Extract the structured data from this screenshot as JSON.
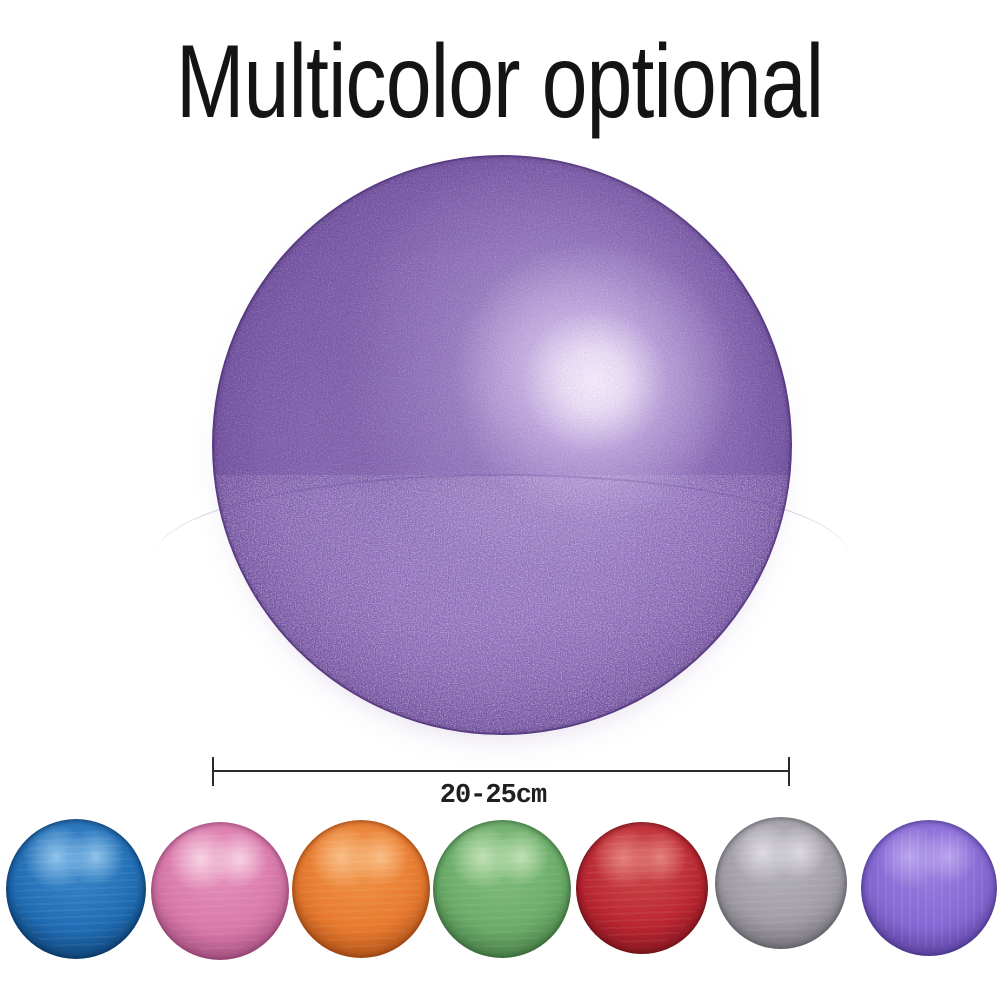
{
  "title": "Multicolor optional",
  "measurement": {
    "label": "20-25cm"
  },
  "main_ball": {
    "name": "purple",
    "colors": {
      "base": "#8f6fbc",
      "light": "#9c80c6",
      "dark": "#6e4c9b",
      "highlight": "#f6eefc",
      "outline": "#2b164a"
    }
  },
  "swatches": [
    {
      "name": "blue",
      "base": "#1f6cb4",
      "mid": "#3c87c9",
      "hi": "#8ec2ea",
      "edge": "#0d4076",
      "ring": "#082c5499"
    },
    {
      "name": "pink",
      "base": "#d977a9",
      "mid": "#e592bb",
      "hi": "#f7d2e2",
      "edge": "#b0508a",
      "ring": "#7e356699"
    },
    {
      "name": "orange",
      "base": "#e8792d",
      "mid": "#ef9448",
      "hi": "#f9bd85",
      "edge": "#bf5316",
      "ring": "#7e360d99"
    },
    {
      "name": "green",
      "base": "#6aac68",
      "mid": "#83bd7e",
      "hi": "#bfe0b4",
      "edge": "#478349",
      "ring": "#2c572f99"
    },
    {
      "name": "red",
      "base": "#bb2531",
      "mid": "#cc4a4d",
      "hi": "#e4807d",
      "edge": "#8d1923",
      "ring": "#580d1499"
    },
    {
      "name": "gray",
      "base": "#a29ea7",
      "mid": "#b5b2ba",
      "hi": "#dcd9e1",
      "edge": "#7a767f",
      "ring": "#4f4c5799"
    },
    {
      "name": "purple",
      "base": "#8667d4",
      "mid": "#9a7fdf",
      "hi": "#b9a5ec",
      "edge": "#5e41b0",
      "ring": "#3c2c7a99"
    }
  ]
}
